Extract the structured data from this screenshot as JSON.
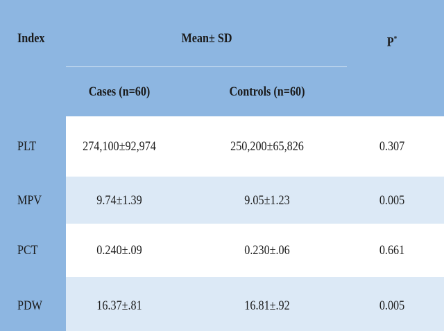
{
  "header": {
    "index": "Index",
    "group": "Mean± SD",
    "p": "P",
    "p_mark": "*",
    "subcolumns": [
      "Cases (n=60)",
      "Controls (n=60)"
    ]
  },
  "table": {
    "rows": [
      [
        "PLT",
        "274,100±92,974",
        "250,200±65,826",
        "0.307"
      ],
      [
        "MPV",
        "9.74±1.39",
        "9.05±1.23",
        "0.005"
      ],
      [
        "PCT",
        "0.240±.09",
        "0.230±.06",
        "0.661"
      ],
      [
        "PDW",
        "16.37±.81",
        "16.81±.92",
        "0.005"
      ]
    ]
  }
}
